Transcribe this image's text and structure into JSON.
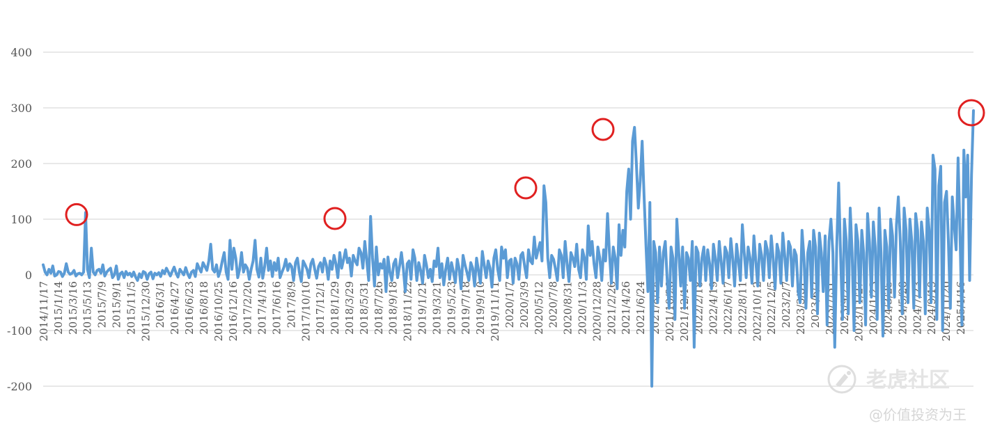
{
  "chart_data": {
    "type": "line",
    "title": "",
    "xlabel": "",
    "ylabel": "",
    "ylim": [
      -200,
      400
    ],
    "yticks": [
      -200,
      -100,
      0,
      100,
      200,
      300,
      400
    ],
    "ytick_labels": [
      "-200",
      "-100",
      "0",
      "100",
      "200",
      "300",
      "400"
    ],
    "grid": true,
    "legend": "none",
    "x_labels": [
      "2014/11/17",
      "2015/1/14",
      "2015/3/16",
      "2015/5/13",
      "2015/7/9",
      "2015/9/1",
      "2015/11/5",
      "2015/12/30",
      "2016/3/1",
      "2016/4/27",
      "2016/6/23",
      "2016/8/18",
      "2016/10/25",
      "2016/12/16",
      "2017/2/20",
      "2017/4/19",
      "2017/6/16",
      "2017/8/9",
      "2017/10/10",
      "2017/12/1",
      "2018/1/29",
      "2018/3/29",
      "2018/5/31",
      "2018/7/26",
      "2018/9/18",
      "2018/11/22",
      "2019/1/21",
      "2019/3/21",
      "2019/5/23",
      "2019/7/18",
      "2019/9/10",
      "2019/11/11",
      "2020/1/7",
      "2020/3/9",
      "2020/5/12",
      "2020/7/8",
      "2020/8/31",
      "2020/11/3",
      "2020/12/28",
      "2021/2/26",
      "2021/4/26",
      "2021/6/24",
      "2021/8/18",
      "2021/10/26",
      "2021/12/17",
      "2022/2/18",
      "2022/4/19",
      "2022/6/17",
      "2022/8/11",
      "2022/10/12",
      "2022/12/5",
      "2023/2/7",
      "2023/3/31",
      "2023/6/2",
      "2023/7/31",
      "2023/9/25",
      "2023/11/27",
      "2024/1/23",
      "2024/3/25",
      "2024/5/28",
      "2024/7/23",
      "2024/9/19",
      "2024/11/20",
      "2025/1/16"
    ],
    "series": [
      {
        "values": [
          18,
          5,
          0,
          10,
          3,
          16,
          -2,
          0,
          6,
          5,
          -3,
          3,
          20,
          5,
          1,
          3,
          8,
          -2,
          2,
          3,
          0,
          5,
          112,
          10,
          -5,
          48,
          5,
          0,
          8,
          10,
          3,
          18,
          -2,
          5,
          9,
          12,
          -5,
          0,
          16,
          -8,
          2,
          5,
          -5,
          6,
          0,
          3,
          -3,
          5,
          -4,
          -10,
          2,
          -5,
          6,
          4,
          -8,
          2,
          5,
          -7,
          3,
          0,
          4,
          -3,
          8,
          2,
          12,
          5,
          -2,
          6,
          14,
          3,
          -4,
          10,
          5,
          0,
          13,
          2,
          -5,
          5,
          8,
          -3,
          20,
          12,
          5,
          22,
          15,
          8,
          25,
          55,
          10,
          5,
          18,
          -3,
          8,
          25,
          40,
          5,
          -8,
          62,
          10,
          48,
          30,
          -5,
          10,
          40,
          5,
          18,
          12,
          -8,
          10,
          25,
          62,
          10,
          -4,
          30,
          -6,
          15,
          48,
          8,
          25,
          -3,
          22,
          8,
          30,
          -5,
          5,
          14,
          28,
          8,
          20,
          15,
          -10,
          22,
          30,
          5,
          -12,
          25,
          18,
          10,
          -5,
          20,
          28,
          10,
          -6,
          15,
          22,
          5,
          30,
          18,
          -8,
          25,
          10,
          35,
          20,
          -5,
          40,
          12,
          28,
          45,
          22,
          30,
          -2,
          35,
          25,
          18,
          48,
          40,
          12,
          60,
          25,
          -10,
          105,
          30,
          -20,
          50,
          0,
          20,
          12,
          28,
          -30,
          32,
          5,
          -10,
          20,
          28,
          -5,
          15,
          40,
          10,
          -30,
          20,
          25,
          -8,
          45,
          30,
          -10,
          22,
          8,
          -15,
          35,
          18,
          -5,
          10,
          -12,
          25,
          15,
          48,
          -5,
          20,
          -18,
          10,
          30,
          -8,
          22,
          5,
          -14,
          28,
          10,
          -25,
          35,
          18,
          5,
          -10,
          22,
          12,
          -20,
          30,
          8,
          -15,
          42,
          18,
          -5,
          25,
          12,
          -22,
          30,
          45,
          10,
          -10,
          50,
          30,
          45,
          -5,
          25,
          28,
          -15,
          30,
          20,
          -8,
          35,
          40,
          15,
          -5,
          45,
          25,
          20,
          68,
          30,
          45,
          58,
          25,
          160,
          130,
          30,
          -5,
          35,
          28,
          10,
          -10,
          45,
          35,
          -5,
          60,
          20,
          -12,
          40,
          30,
          15,
          55,
          10,
          -5,
          45,
          30,
          -8,
          88,
          35,
          60,
          20,
          -5,
          50,
          30,
          -10,
          45,
          25,
          110,
          40,
          -15,
          50,
          30,
          -25,
          90,
          35,
          80,
          50,
          150,
          190,
          100,
          240,
          265,
          200,
          120,
          170,
          240,
          140,
          50,
          -30,
          130,
          -200,
          60,
          40,
          -50,
          50,
          -20,
          40,
          60,
          -10,
          -60,
          50,
          30,
          -80,
          100,
          40,
          -20,
          50,
          -60,
          40,
          30,
          -10,
          60,
          -130,
          50,
          40,
          -20,
          30,
          50,
          -10,
          45,
          20,
          -25,
          55,
          30,
          -10,
          60,
          25,
          -15,
          50,
          40,
          -5,
          65,
          30,
          -20,
          55,
          25,
          -10,
          90,
          40,
          -5,
          50,
          30,
          -15,
          70,
          25,
          -20,
          55,
          35,
          -10,
          60,
          45,
          -5,
          70,
          30,
          -25,
          55,
          40,
          -15,
          75,
          35,
          -10,
          60,
          50,
          -20,
          45,
          35,
          -30,
          -50,
          80,
          30,
          -60,
          40,
          60,
          -40,
          80,
          50,
          -70,
          75,
          40,
          -30,
          70,
          -90,
          60,
          100,
          40,
          -130,
          50,
          165,
          40,
          -80,
          100,
          60,
          -70,
          120,
          40,
          -100,
          90,
          60,
          -50,
          80,
          40,
          -90,
          110,
          60,
          -40,
          95,
          50,
          -80,
          120,
          40,
          -110,
          80,
          50,
          -60,
          100,
          70,
          -40,
          90,
          140,
          60,
          -70,
          120,
          80,
          -50,
          100,
          60,
          -60,
          110,
          80,
          -40,
          95,
          60,
          -70,
          120,
          80,
          -50,
          215,
          190,
          -80,
          160,
          195,
          -100,
          130,
          150,
          60,
          -60,
          140,
          90,
          45,
          210,
          80,
          -90,
          224,
          140,
          215,
          -10,
          180,
          295
        ]
      }
    ],
    "highlighted_peaks": [
      {
        "x": "2015/3/16",
        "y": 112
      },
      {
        "x": "2018/1/29",
        "y": 105
      },
      {
        "x": "2020/3/9",
        "y": 160
      },
      {
        "x": "2021/2/26",
        "y": 265
      },
      {
        "x": "2025/1/16",
        "y": 295
      }
    ],
    "colors": {
      "line": "#5b9bd5",
      "highlight_circle": "#e02020",
      "grid": "#d9d9d9",
      "tick_text": "#555555"
    }
  },
  "watermark": {
    "title": "老虎社区",
    "subtitle": "@价值投资为王"
  }
}
